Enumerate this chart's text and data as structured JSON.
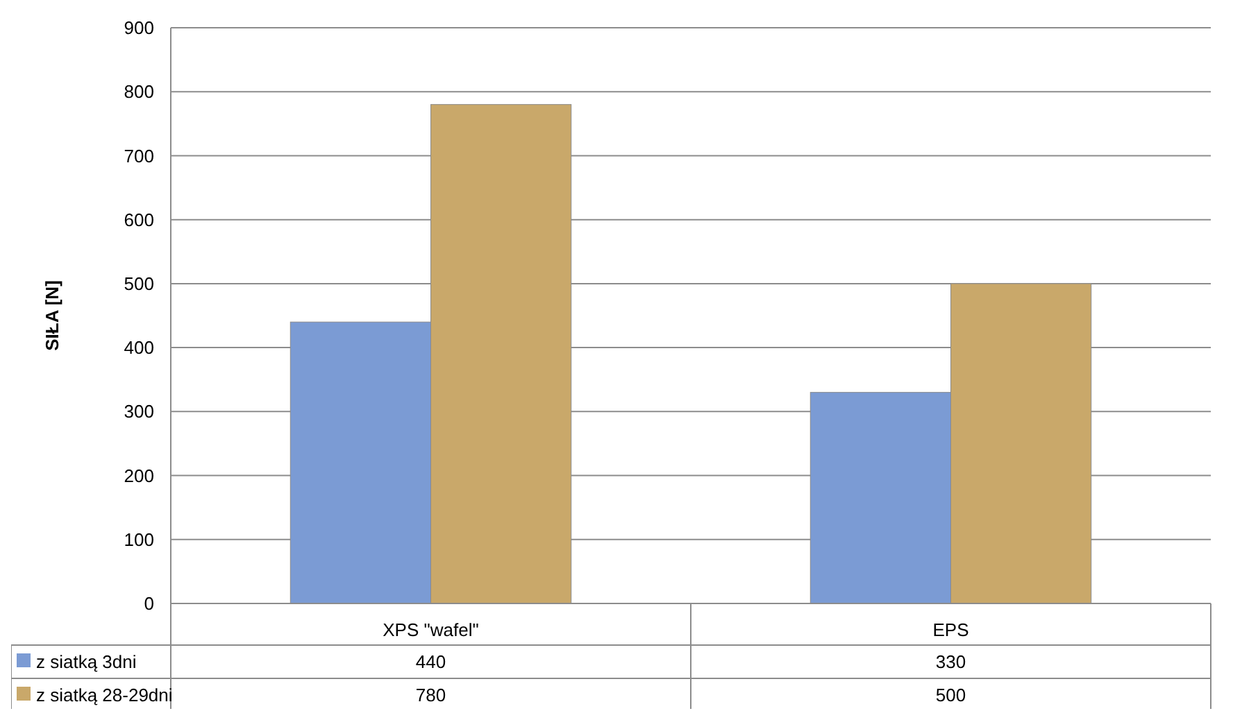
{
  "chart_data": {
    "type": "bar",
    "ylabel": "SIŁA [N]",
    "categories": [
      "XPS \"wafel\"",
      "EPS"
    ],
    "series": [
      {
        "name": "z siatką 3dni",
        "color": "#7b9bd4",
        "values": [
          440,
          330
        ]
      },
      {
        "name": "z siatką 28-29dni",
        "color": "#c9a86a",
        "values": [
          780,
          500
        ]
      }
    ],
    "ylim": [
      0,
      900
    ],
    "yticks": [
      0,
      100,
      200,
      300,
      400,
      500,
      600,
      700,
      800,
      900
    ],
    "grid": "y",
    "legend": "bottom",
    "data_labels": true
  }
}
